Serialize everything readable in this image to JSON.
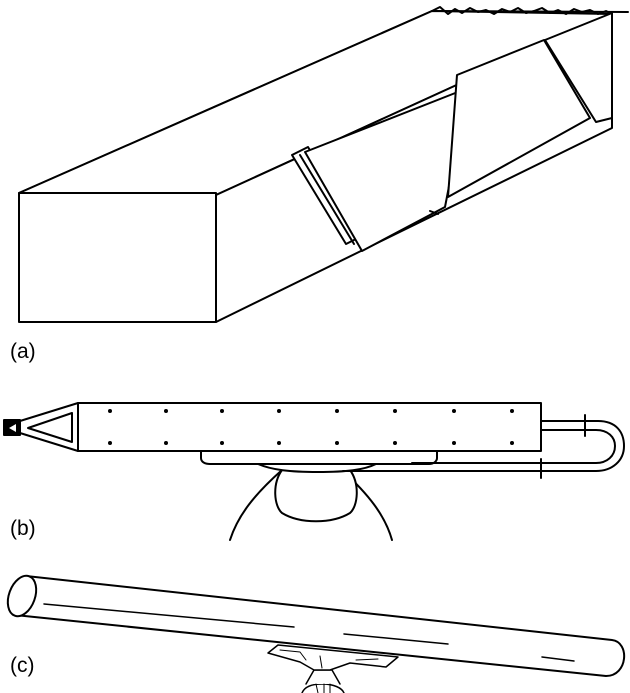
{
  "panels": [
    {
      "label": "(a)"
    },
    {
      "label": "(b)"
    },
    {
      "label": "(c)"
    }
  ],
  "colors": {
    "line": "#000000",
    "fill": "#ffffff",
    "tip": "#000000"
  }
}
